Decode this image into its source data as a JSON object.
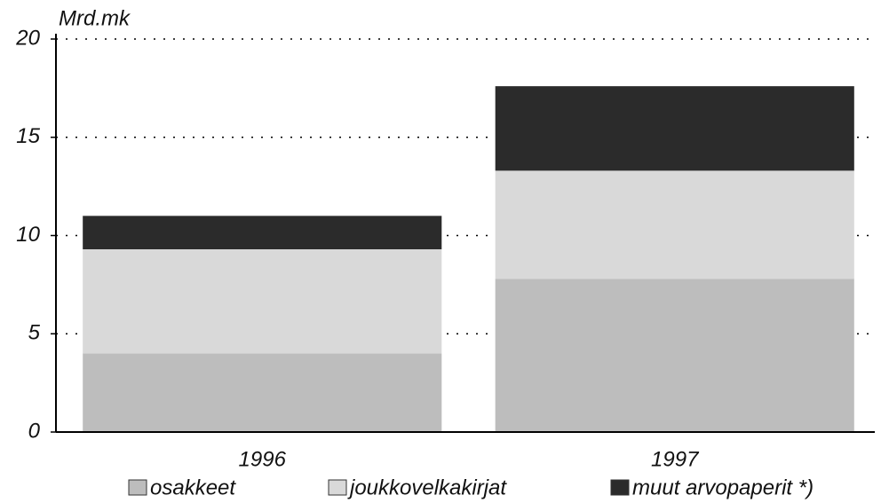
{
  "chart_data": {
    "type": "stacked_bar",
    "y_label": "Mrd.mk",
    "categories": [
      "1996",
      "1997"
    ],
    "series": [
      {
        "name": "osakkeet",
        "color": "#bdbdbd",
        "values": [
          4.0,
          7.8
        ]
      },
      {
        "name": "joukkovelkakirjat",
        "color": "#d9d9d9",
        "values": [
          5.3,
          5.5
        ]
      },
      {
        "name": "muut arvopaperit *)",
        "color": "#2b2b2b",
        "values": [
          1.7,
          4.3
        ]
      }
    ],
    "ylim": [
      0,
      20
    ],
    "yticks": [
      0,
      5,
      10,
      15,
      20
    ],
    "grid": true,
    "legend": "bottom"
  }
}
